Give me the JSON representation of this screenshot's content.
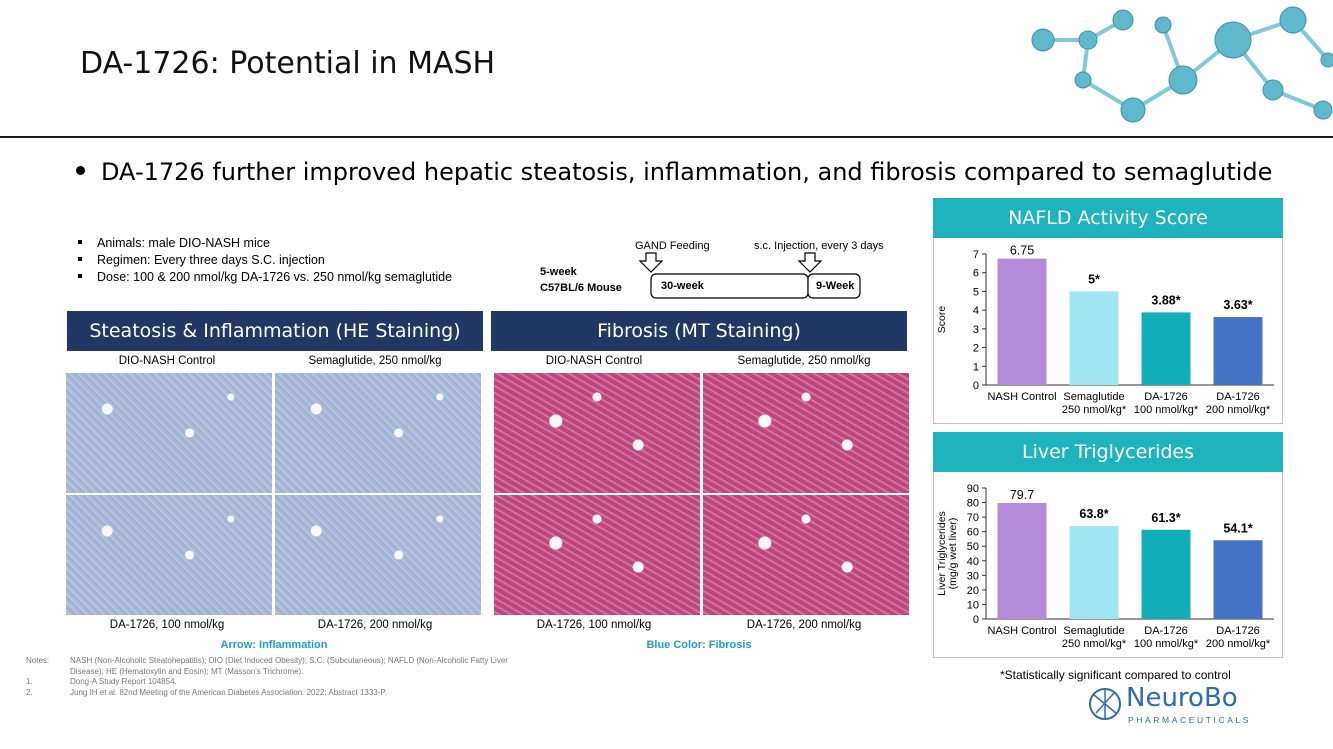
{
  "title": "DA-1726: Potential in MASH",
  "bullet": "DA-1726 further improved hepatic steatosis, inflammation, and fibrosis compared to semaglutide",
  "study": [
    "Animals: male DIO-NASH mice",
    "Regimen: Every three days S.C. injection",
    "Dose: 100 & 200 nmol/kg DA-1726 vs. 250 nmol/kg semaglutide"
  ],
  "timeline": {
    "gand": "GAND Feeding",
    "injection": "s.c. Injection, every 3 days",
    "mouse_line1": "5-week",
    "mouse_line2": "C57BL/6 Mouse",
    "phase1": "30-week",
    "phase2": "9-Week"
  },
  "he": {
    "header": "Steatosis & Inflammation (HE Staining)",
    "labels": [
      "DIO-NASH Control",
      "Semaglutide, 250 nmol/kg",
      "DA-1726, 100 nmol/kg",
      "DA-1726, 200 nmol/kg"
    ],
    "caption": "Arrow: Inflammation"
  },
  "mt": {
    "header": "Fibrosis (MT Staining)",
    "labels": [
      "DIO-NASH Control",
      "Semaglutide, 250 nmol/kg",
      "DA-1726, 100 nmol/kg",
      "DA-1726, 200 nmol/kg"
    ],
    "caption": "Blue Color: Fibrosis"
  },
  "notes": {
    "label": "Notes:",
    "line1": "NASH (Non-Alcoholic Steatohepatitis); DIO (Diet Induced Obesity); S.C. (Subcutaneous); NAFLD (Non-Alcoholic Fatty Liver",
    "line2": "Disease); HE (Hematoxylin and Eosin); MT (Masson's Trichrome).",
    "ref1_num": "1.",
    "ref1": "Dong-A Study Report 104854.",
    "ref2_num": "2.",
    "ref2": "Jung IH et al. 82nd Meeting of the American Diabetes Association. 2022; Abstract 1333-P."
  },
  "chart_data": [
    {
      "type": "bar",
      "title": "NAFLD Activity Score",
      "ylabel": "Score",
      "ylim": [
        0,
        7
      ],
      "yticks": [
        0,
        1,
        2,
        3,
        4,
        5,
        6,
        7
      ],
      "categories": [
        [
          "NASH Control"
        ],
        [
          "Semaglutide",
          "250 nmol/kg*"
        ],
        [
          "DA-1726",
          "100 nmol/kg*"
        ],
        [
          "DA-1726",
          "200 nmol/kg*"
        ]
      ],
      "values": [
        6.75,
        5,
        3.88,
        3.63
      ],
      "value_labels": [
        "6.75",
        "5*",
        "3.88*",
        "3.63*"
      ],
      "colors": [
        "#b48bd9",
        "#9fe5f2",
        "#12aeb8",
        "#4472c4"
      ]
    },
    {
      "type": "bar",
      "title": "Liver Triglycerides",
      "ylabel": [
        "Liver Triglycerides",
        "(mg/g wet liver)"
      ],
      "ylim": [
        0,
        90
      ],
      "yticks": [
        0,
        10,
        20,
        30,
        40,
        50,
        60,
        70,
        80,
        90
      ],
      "categories": [
        [
          "NASH Control"
        ],
        [
          "Semaglutide",
          "250 nmol/kg*"
        ],
        [
          "DA-1726",
          "100 nmol/kg*"
        ],
        [
          "DA-1726",
          "200 nmol/kg*"
        ]
      ],
      "values": [
        79.7,
        63.8,
        61.3,
        54.1
      ],
      "value_labels": [
        "79.7",
        "63.8*",
        "61.3*",
        "54.1*"
      ],
      "colors": [
        "#b48bd9",
        "#9fe5f2",
        "#12aeb8",
        "#4472c4"
      ]
    }
  ],
  "significance_note": "*Statistically significant compared to control",
  "logo": {
    "name": "NeuroBo",
    "sub": "PHARMACEUTICALS"
  }
}
